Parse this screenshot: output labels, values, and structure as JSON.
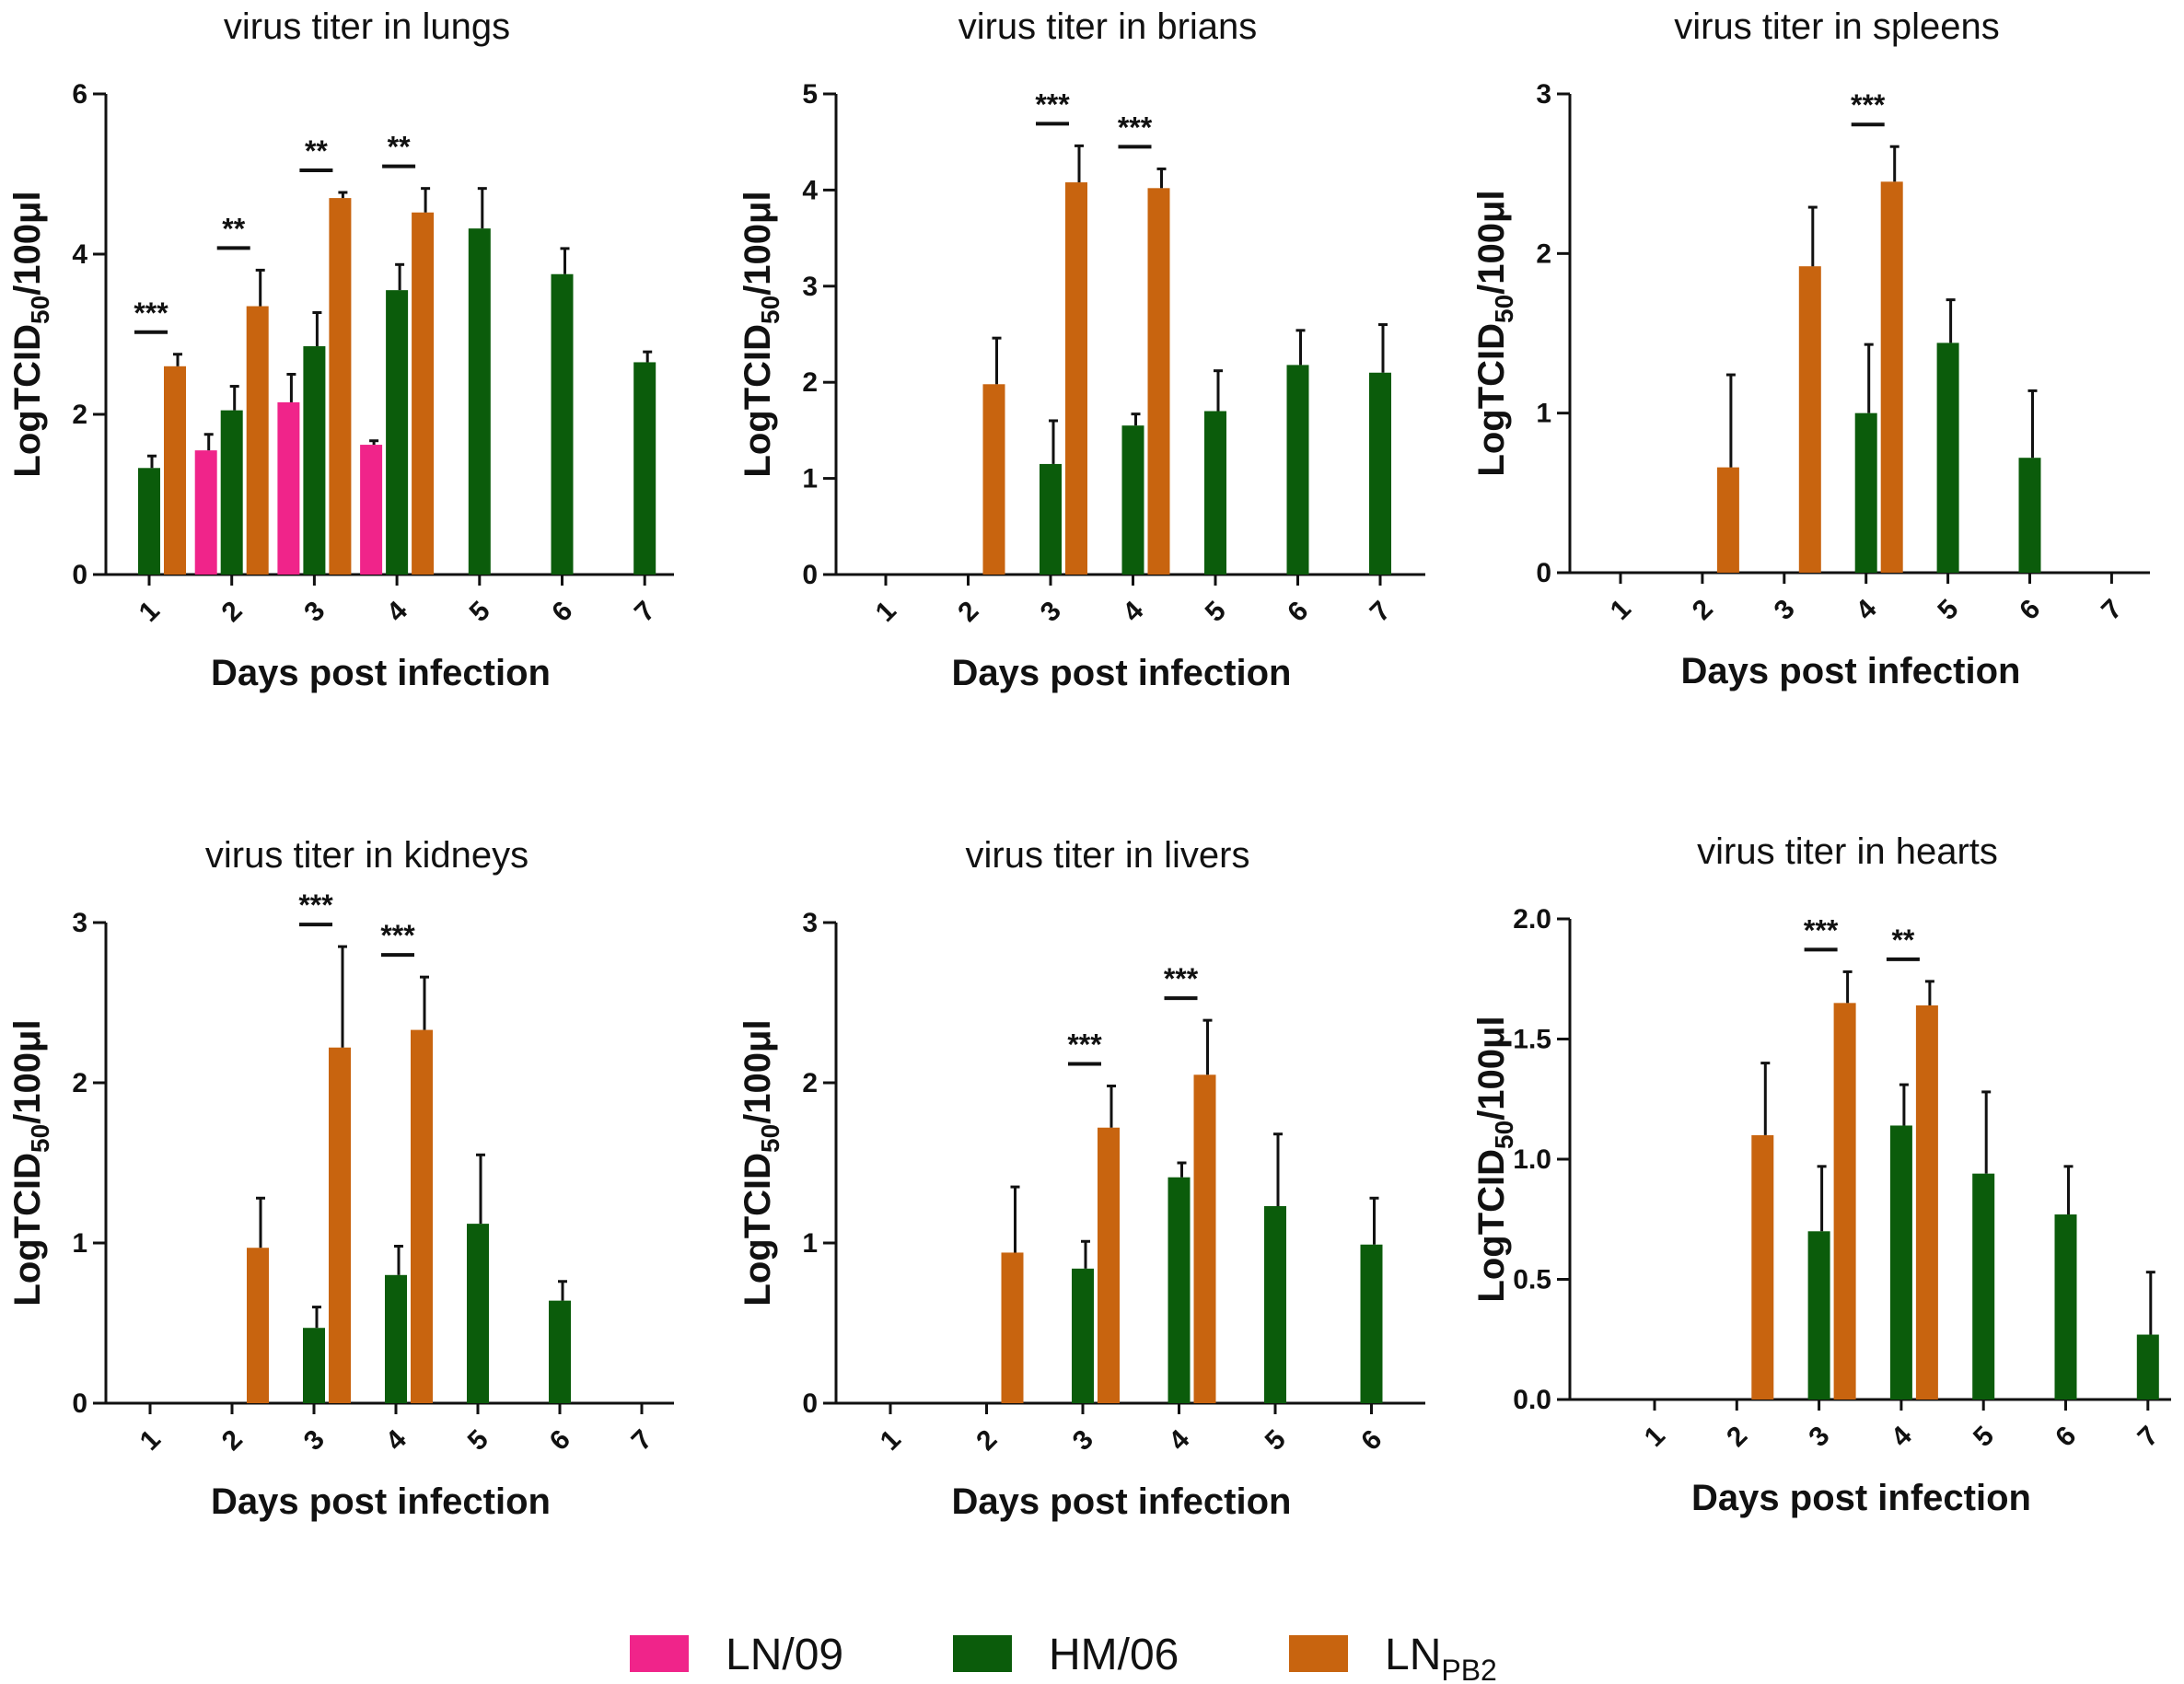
{
  "legend": {
    "items": [
      {
        "name": "LN/09",
        "label": "LN/09",
        "sub": "",
        "color": "#f0248a"
      },
      {
        "name": "HM/06",
        "label": "HM/06",
        "sub": "",
        "color": "#0b5c0b"
      },
      {
        "name": "LNPB2",
        "label": "LN",
        "sub": "PB2",
        "color": "#c8640f"
      }
    ]
  },
  "chart_data": [
    {
      "type": "bar",
      "title": "virus titer in lungs",
      "xlabel": "Days post infection",
      "ylabel": "LogTCID",
      "ylabel_sub": "50",
      "ylabel_suffix": "/100μl",
      "ylim": [
        0,
        6
      ],
      "yticks": [
        "0",
        "2",
        "4",
        "6"
      ],
      "categories": [
        "1",
        "2",
        "3",
        "4",
        "5",
        "6",
        "7"
      ],
      "series": [
        {
          "name": "LN/09",
          "values": [
            null,
            1.55,
            2.15,
            1.62,
            null,
            null,
            null
          ],
          "errors": [
            null,
            0.2,
            0.35,
            0.05,
            null,
            null,
            null
          ]
        },
        {
          "name": "HM/06",
          "values": [
            1.33,
            2.05,
            2.85,
            3.55,
            4.32,
            3.75,
            2.65
          ],
          "errors": [
            0.15,
            0.3,
            0.42,
            0.32,
            0.5,
            0.32,
            0.13
          ]
        },
        {
          "name": "LNPB2",
          "values": [
            2.6,
            3.35,
            4.7,
            4.52,
            null,
            null,
            null
          ],
          "errors": [
            0.15,
            0.45,
            0.07,
            0.3,
            null,
            null,
            null
          ]
        }
      ],
      "significance": [
        {
          "category": "1",
          "label": "***"
        },
        {
          "category": "2",
          "label": "**"
        },
        {
          "category": "3",
          "label": "**"
        },
        {
          "category": "4",
          "label": "**"
        }
      ]
    },
    {
      "type": "bar",
      "title": "virus titer in brians",
      "xlabel": "Days post infection",
      "ylabel": "LogTCID",
      "ylabel_sub": "50",
      "ylabel_suffix": "/100μl",
      "ylim": [
        0,
        5
      ],
      "yticks": [
        "0",
        "1",
        "2",
        "3",
        "4",
        "5"
      ],
      "categories": [
        "1",
        "2",
        "3",
        "4",
        "5",
        "6",
        "7"
      ],
      "series": [
        {
          "name": "HM/06",
          "values": [
            null,
            null,
            1.15,
            1.55,
            1.7,
            2.18,
            2.1
          ],
          "errors": [
            null,
            null,
            0.45,
            0.12,
            0.42,
            0.36,
            0.5
          ]
        },
        {
          "name": "LNPB2",
          "values": [
            null,
            1.98,
            4.08,
            4.02,
            null,
            null,
            null
          ],
          "errors": [
            null,
            0.48,
            0.38,
            0.2,
            null,
            null,
            null
          ]
        }
      ],
      "significance": [
        {
          "category": "3",
          "label": "***"
        },
        {
          "category": "4",
          "label": "***"
        }
      ]
    },
    {
      "type": "bar",
      "title": "virus titer in spleens",
      "xlabel": "Days post infection",
      "ylabel": "LogTCID",
      "ylabel_sub": "50",
      "ylabel_suffix": "/100μl",
      "ylim": [
        0,
        3
      ],
      "yticks": [
        "0",
        "1",
        "2",
        "3"
      ],
      "categories": [
        "1",
        "2",
        "3",
        "4",
        "5",
        "6",
        "7"
      ],
      "series": [
        {
          "name": "HM/06",
          "values": [
            null,
            null,
            null,
            1.0,
            1.44,
            0.72,
            null
          ],
          "errors": [
            null,
            null,
            null,
            0.43,
            0.27,
            0.42,
            null
          ]
        },
        {
          "name": "LNPB2",
          "values": [
            null,
            0.66,
            1.92,
            2.45,
            null,
            null,
            null
          ],
          "errors": [
            null,
            0.58,
            0.37,
            0.22,
            null,
            null,
            null
          ]
        }
      ],
      "significance": [
        {
          "category": "4",
          "label": "***"
        }
      ]
    },
    {
      "type": "bar",
      "title": "virus titer in kidneys",
      "xlabel": "Days post infection",
      "ylabel": "LogTCID",
      "ylabel_sub": "50",
      "ylabel_suffix": "/100μl",
      "ylim": [
        0,
        3
      ],
      "yticks": [
        "0",
        "1",
        "2",
        "3"
      ],
      "categories": [
        "1",
        "2",
        "3",
        "4",
        "5",
        "6",
        "7"
      ],
      "series": [
        {
          "name": "HM/06",
          "values": [
            null,
            null,
            0.47,
            0.8,
            1.12,
            0.64,
            null
          ],
          "errors": [
            null,
            null,
            0.13,
            0.18,
            0.43,
            0.12,
            null
          ]
        },
        {
          "name": "LNPB2",
          "values": [
            null,
            0.97,
            2.22,
            2.33,
            null,
            null,
            null
          ],
          "errors": [
            null,
            0.31,
            0.63,
            0.33,
            null,
            null,
            null
          ]
        }
      ],
      "significance": [
        {
          "category": "3",
          "label": "***"
        },
        {
          "category": "4",
          "label": "***"
        }
      ]
    },
    {
      "type": "bar",
      "title": "virus titer in livers",
      "xlabel": "Days post infection",
      "ylabel": "LogTCID",
      "ylabel_sub": "50",
      "ylabel_suffix": "/100μl",
      "ylim": [
        0,
        3
      ],
      "yticks": [
        "0",
        "1",
        "2",
        "3"
      ],
      "categories": [
        "1",
        "2",
        "3",
        "4",
        "5",
        "6"
      ],
      "series": [
        {
          "name": "HM/06",
          "values": [
            null,
            null,
            0.84,
            1.41,
            1.23,
            0.99
          ],
          "errors": [
            null,
            null,
            0.17,
            0.09,
            0.45,
            0.29
          ]
        },
        {
          "name": "LNPB2",
          "values": [
            null,
            0.94,
            1.72,
            2.05,
            null,
            null
          ],
          "errors": [
            null,
            0.41,
            0.26,
            0.34,
            null,
            null
          ]
        }
      ],
      "significance": [
        {
          "category": "3",
          "label": "***"
        },
        {
          "category": "4",
          "label": "***"
        }
      ]
    },
    {
      "type": "bar",
      "title": "virus titer in hearts",
      "xlabel": "Days post infection",
      "ylabel": "LogTCID",
      "ylabel_sub": "50",
      "ylabel_suffix": "/100μl",
      "ylim": [
        0,
        2.0
      ],
      "yticks": [
        "0.0",
        "0.5",
        "1.0",
        "1.5",
        "2.0"
      ],
      "categories": [
        "1",
        "2",
        "3",
        "4",
        "5",
        "6",
        "7"
      ],
      "series": [
        {
          "name": "HM/06",
          "values": [
            null,
            null,
            0.7,
            1.14,
            0.94,
            0.77,
            0.27
          ],
          "errors": [
            null,
            null,
            0.27,
            0.17,
            0.34,
            0.2,
            0.26
          ]
        },
        {
          "name": "LNPB2",
          "values": [
            null,
            1.1,
            1.65,
            1.64,
            null,
            null,
            null
          ],
          "errors": [
            null,
            0.3,
            0.13,
            0.1,
            null,
            null,
            null
          ]
        }
      ],
      "significance": [
        {
          "category": "3",
          "label": "***"
        },
        {
          "category": "4",
          "label": "**"
        }
      ]
    }
  ]
}
